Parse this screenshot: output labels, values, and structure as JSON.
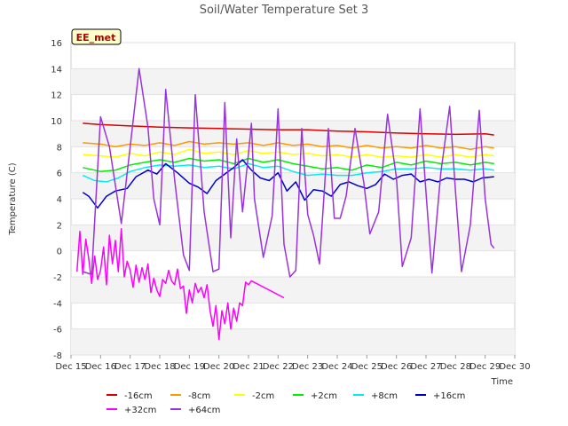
{
  "chart_data": {
    "type": "line",
    "title": "Soil/Water Temperature Set 3",
    "xlabel": "Time",
    "ylabel": "Temperature (C)",
    "xlim": [
      15,
      30
    ],
    "ylim": [
      -8,
      16
    ],
    "x_ticks": [
      15,
      16,
      17,
      18,
      19,
      20,
      21,
      22,
      23,
      24,
      25,
      26,
      27,
      28,
      29,
      30
    ],
    "x_tick_labels": [
      "Dec 15",
      "Dec 16",
      "Dec 17",
      "Dec 18",
      "Dec 19",
      "Dec 20",
      "Dec 21",
      "Dec 22",
      "Dec 23",
      "Dec 24",
      "Dec 25",
      "Dec 26",
      "Dec 27",
      "Dec 28",
      "Dec 29",
      "Dec 30"
    ],
    "y_ticks": [
      -8,
      -6,
      -4,
      -2,
      0,
      2,
      4,
      6,
      8,
      10,
      12,
      14,
      16
    ],
    "y_tick_labels": [
      "-8",
      "-6",
      "-4",
      "-2",
      "0",
      "2",
      "4",
      "6",
      "8",
      "10",
      "12",
      "14",
      "16"
    ],
    "grid": "horizontal bands",
    "legend_position": "bottom",
    "annotation": "EE_met",
    "series": [
      {
        "name": "-16cm",
        "color": "#dd0000",
        "x": [
          15.4,
          16,
          17,
          18,
          19,
          20,
          21,
          22,
          23,
          24,
          25,
          26,
          27,
          28,
          29.0,
          29.3
        ],
        "y": [
          9.8,
          9.7,
          9.6,
          9.5,
          9.45,
          9.4,
          9.35,
          9.3,
          9.3,
          9.2,
          9.15,
          9.05,
          9.0,
          8.95,
          9.0,
          8.9
        ]
      },
      {
        "name": "-8cm",
        "color": "#ff9900",
        "x": [
          15.4,
          16,
          16.5,
          17,
          17.5,
          18,
          18.5,
          19,
          19.5,
          20,
          20.5,
          21,
          21.5,
          22,
          22.5,
          23,
          23.5,
          24,
          24.5,
          25,
          25.5,
          26,
          26.5,
          27,
          27.5,
          28,
          28.5,
          29,
          29.3
        ],
        "y": [
          8.3,
          8.2,
          8.0,
          8.2,
          8.1,
          8.3,
          8.1,
          8.4,
          8.2,
          8.3,
          8.2,
          8.3,
          8.1,
          8.3,
          8.1,
          8.2,
          8.0,
          8.1,
          7.9,
          8.1,
          7.9,
          8.0,
          7.9,
          8.1,
          7.9,
          8.0,
          7.8,
          8.0,
          7.9
        ]
      },
      {
        "name": "-2cm",
        "color": "#ffff00",
        "x": [
          15.4,
          16,
          16.5,
          17,
          17.5,
          18,
          18.5,
          19,
          19.5,
          20,
          20.5,
          21,
          21.5,
          22,
          22.5,
          23,
          23.5,
          24,
          24.5,
          25,
          25.5,
          26,
          26.5,
          27,
          27.5,
          28,
          28.5,
          29,
          29.3
        ],
        "y": [
          7.4,
          7.3,
          7.2,
          7.5,
          7.3,
          7.6,
          7.4,
          7.8,
          7.5,
          7.6,
          7.4,
          7.7,
          7.5,
          7.6,
          7.4,
          7.5,
          7.3,
          7.4,
          7.2,
          7.4,
          7.2,
          7.3,
          7.2,
          7.4,
          7.2,
          7.4,
          7.2,
          7.4,
          7.3
        ]
      },
      {
        "name": "+2cm",
        "color": "#00ee00",
        "x": [
          15.4,
          16,
          16.5,
          17,
          17.5,
          18,
          18.5,
          19,
          19.5,
          20,
          20.5,
          21,
          21.5,
          22,
          22.5,
          23,
          23.5,
          24,
          24.5,
          25,
          25.5,
          26,
          26.5,
          27,
          27.5,
          28,
          28.5,
          29,
          29.3
        ],
        "y": [
          6.4,
          6.1,
          6.2,
          6.6,
          6.8,
          7.0,
          6.8,
          7.1,
          6.9,
          7.0,
          6.7,
          7.1,
          6.8,
          7.0,
          6.7,
          6.5,
          6.3,
          6.4,
          6.2,
          6.6,
          6.4,
          6.8,
          6.6,
          6.9,
          6.7,
          6.8,
          6.6,
          6.8,
          6.7
        ]
      },
      {
        "name": "+8cm",
        "color": "#00eeee",
        "x": [
          15.4,
          15.8,
          16.2,
          16.6,
          17,
          17.5,
          18,
          18.5,
          19,
          19.5,
          20,
          20.5,
          21,
          21.5,
          22,
          22.5,
          23,
          23.5,
          24,
          24.5,
          25,
          25.5,
          26,
          26.5,
          27,
          27.5,
          28,
          28.5,
          29,
          29.3
        ],
        "y": [
          5.8,
          5.4,
          5.3,
          5.6,
          6.1,
          6.4,
          6.6,
          6.5,
          6.6,
          6.4,
          6.5,
          6.3,
          6.7,
          6.4,
          6.5,
          6.1,
          5.8,
          5.9,
          5.8,
          5.8,
          6.0,
          6.1,
          6.3,
          6.3,
          6.4,
          6.3,
          6.3,
          6.2,
          6.3,
          6.2
        ]
      },
      {
        "name": "+16cm",
        "color": "#0000cc",
        "x": [
          15.4,
          15.6,
          15.9,
          16.2,
          16.5,
          16.9,
          17.2,
          17.6,
          17.9,
          18.2,
          18.6,
          19.0,
          19.3,
          19.6,
          19.9,
          20.2,
          20.5,
          20.8,
          21.1,
          21.4,
          21.7,
          22.0,
          22.3,
          22.6,
          22.9,
          23.2,
          23.5,
          23.8,
          24.1,
          24.4,
          24.7,
          25.0,
          25.3,
          25.6,
          25.9,
          26.2,
          26.5,
          26.8,
          27.1,
          27.4,
          27.7,
          28.0,
          28.3,
          28.6,
          28.9,
          29.3
        ],
        "y": [
          4.5,
          4.2,
          3.3,
          4.2,
          4.6,
          4.8,
          5.7,
          6.2,
          5.9,
          6.7,
          6.0,
          5.2,
          4.9,
          4.4,
          5.4,
          5.9,
          6.4,
          7.0,
          6.2,
          5.6,
          5.4,
          6.0,
          4.6,
          5.3,
          3.9,
          4.7,
          4.6,
          4.2,
          5.1,
          5.3,
          5.0,
          4.8,
          5.1,
          5.9,
          5.5,
          5.8,
          5.9,
          5.3,
          5.5,
          5.3,
          5.6,
          5.5,
          5.5,
          5.3,
          5.6,
          5.7
        ]
      },
      {
        "name": "+32cm",
        "color": "#ff00ff",
        "x": [
          15.2,
          15.3,
          15.4,
          15.5,
          15.6,
          15.7,
          15.8,
          15.9,
          16.0,
          16.1,
          16.2,
          16.3,
          16.4,
          16.5,
          16.6,
          16.7,
          16.8,
          16.9,
          17.0,
          17.1,
          17.2,
          17.3,
          17.4,
          17.5,
          17.6,
          17.7,
          17.8,
          17.9,
          18.0,
          18.1,
          18.2,
          18.3,
          18.4,
          18.5,
          18.6,
          18.7,
          18.8,
          18.9,
          19.0,
          19.1,
          19.2,
          19.3,
          19.4,
          19.5,
          19.6,
          19.7,
          19.8,
          19.9,
          20.0,
          20.1,
          20.2,
          20.3,
          20.4,
          20.5,
          20.6,
          20.7,
          20.8,
          20.9,
          21.0,
          21.1,
          22.2
        ],
        "y": [
          -1.6,
          1.5,
          -1.8,
          0.9,
          -0.6,
          -2.5,
          -0.4,
          -2.2,
          -1.5,
          0.3,
          -2.6,
          1.2,
          -1.0,
          0.8,
          -1.6,
          1.7,
          -2.0,
          -0.8,
          -1.5,
          -2.8,
          -1.1,
          -2.4,
          -1.3,
          -2.2,
          -1.0,
          -3.2,
          -2.1,
          -3.0,
          -3.5,
          -2.2,
          -2.5,
          -1.5,
          -2.3,
          -2.6,
          -1.4,
          -2.9,
          -2.7,
          -4.8,
          -3.0,
          -4.0,
          -2.5,
          -3.2,
          -2.8,
          -3.6,
          -2.6,
          -4.6,
          -5.8,
          -4.2,
          -6.8,
          -4.6,
          -5.6,
          -4.0,
          -6.0,
          -4.4,
          -5.4,
          -4.0,
          -4.2,
          -2.4,
          -2.6,
          -2.3,
          -3.6
        ]
      },
      {
        "name": "+64cm",
        "color": "#9933dd",
        "x": [
          15.4,
          15.7,
          16.0,
          16.3,
          16.7,
          17.0,
          17.3,
          17.6,
          17.8,
          18.0,
          18.2,
          18.5,
          18.8,
          19.0,
          19.2,
          19.5,
          19.8,
          20.0,
          20.2,
          20.4,
          20.6,
          20.8,
          20.9,
          21.0,
          21.1,
          21.2,
          21.5,
          21.8,
          22.0,
          22.2,
          22.4,
          22.6,
          22.8,
          23.0,
          23.2,
          23.4,
          23.7,
          23.9,
          24.1,
          24.3,
          24.6,
          24.9,
          25.1,
          25.4,
          25.7,
          26.0,
          26.2,
          26.5,
          26.8,
          27.0,
          27.2,
          27.5,
          27.8,
          28.0,
          28.2,
          28.5,
          28.8,
          29.0,
          29.2,
          29.3
        ],
        "y": [
          -1.6,
          -1.8,
          10.3,
          8.0,
          2.1,
          8.0,
          14.0,
          9.5,
          4.0,
          2.0,
          12.4,
          5.5,
          -0.3,
          -1.5,
          12.0,
          3.0,
          -1.6,
          -1.4,
          11.4,
          1.0,
          8.6,
          3.0,
          5.3,
          7.5,
          9.8,
          4.0,
          -0.5,
          2.7,
          10.9,
          0.5,
          -2.0,
          -1.5,
          9.4,
          2.8,
          1.2,
          -1.0,
          9.4,
          2.5,
          2.5,
          4.2,
          9.4,
          5.2,
          1.3,
          3.0,
          10.5,
          5.6,
          -1.2,
          1.0,
          10.9,
          4.5,
          -1.7,
          6.0,
          11.1,
          4.5,
          -1.6,
          2.0,
          10.8,
          4.0,
          0.5,
          0.2
        ]
      }
    ]
  }
}
